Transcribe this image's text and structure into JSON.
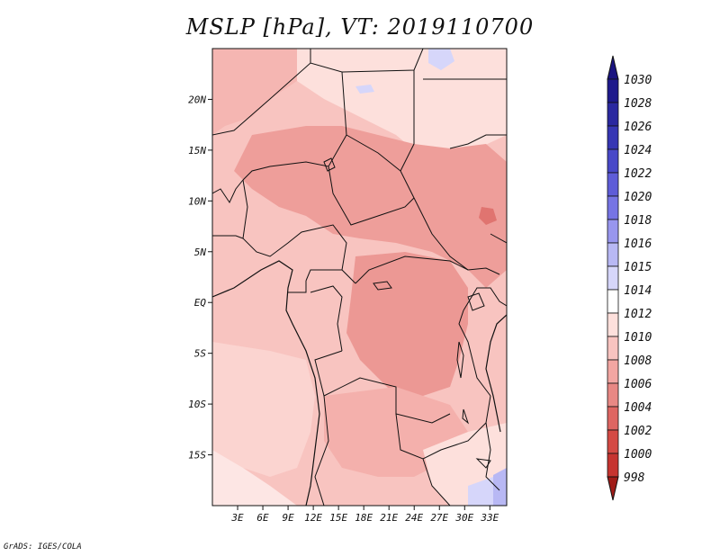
{
  "title": "MSLP [hPa], VT: 2019110700",
  "credit": "GrADS: IGES/COLA",
  "map": {
    "lon_range": [
      0,
      35
    ],
    "lat_range": [
      -20,
      25
    ],
    "lat_ticks": [
      {
        "value": 20,
        "label": "20N"
      },
      {
        "value": 15,
        "label": "15N"
      },
      {
        "value": 10,
        "label": "10N"
      },
      {
        "value": 5,
        "label": "5N"
      },
      {
        "value": 0,
        "label": "EQ"
      },
      {
        "value": -5,
        "label": "5S"
      },
      {
        "value": -10,
        "label": "10S"
      },
      {
        "value": -15,
        "label": "15S"
      }
    ],
    "lon_ticks": [
      {
        "value": 3,
        "label": "3E"
      },
      {
        "value": 6,
        "label": "6E"
      },
      {
        "value": 9,
        "label": "9E"
      },
      {
        "value": 12,
        "label": "12E"
      },
      {
        "value": 15,
        "label": "15E"
      },
      {
        "value": 18,
        "label": "18E"
      },
      {
        "value": 21,
        "label": "21E"
      },
      {
        "value": 24,
        "label": "24E"
      },
      {
        "value": 27,
        "label": "27E"
      },
      {
        "value": 30,
        "label": "30E"
      },
      {
        "value": 33,
        "label": "33E"
      }
    ]
  },
  "colorbar": {
    "levels": [
      {
        "label": "1030",
        "color": "#1e1a8c"
      },
      {
        "label": "1028",
        "color": "#2a28a0"
      },
      {
        "label": "1026",
        "color": "#3636b4"
      },
      {
        "label": "1024",
        "color": "#4848c8"
      },
      {
        "label": "1022",
        "color": "#5e5cd8"
      },
      {
        "label": "1020",
        "color": "#7674e4"
      },
      {
        "label": "1018",
        "color": "#9896ee"
      },
      {
        "label": "1016",
        "color": "#b8b8f4"
      },
      {
        "label": "1015",
        "color": "#d6d6fa"
      },
      {
        "label": "1014",
        "color": "#ffffff"
      },
      {
        "label": "1012",
        "color": "#fde0dc"
      },
      {
        "label": "1010",
        "color": "#f8c4c0"
      },
      {
        "label": "1008",
        "color": "#f2a6a2"
      },
      {
        "label": "1006",
        "color": "#e88884"
      },
      {
        "label": "1004",
        "color": "#de6662"
      },
      {
        "label": "1002",
        "color": "#d44a44"
      },
      {
        "label": "1000",
        "color": "#c63430"
      },
      {
        "label": "998",
        "color": "#b02420"
      }
    ],
    "top_color": "#1a1480",
    "bottom_color": "#a01c18"
  }
}
